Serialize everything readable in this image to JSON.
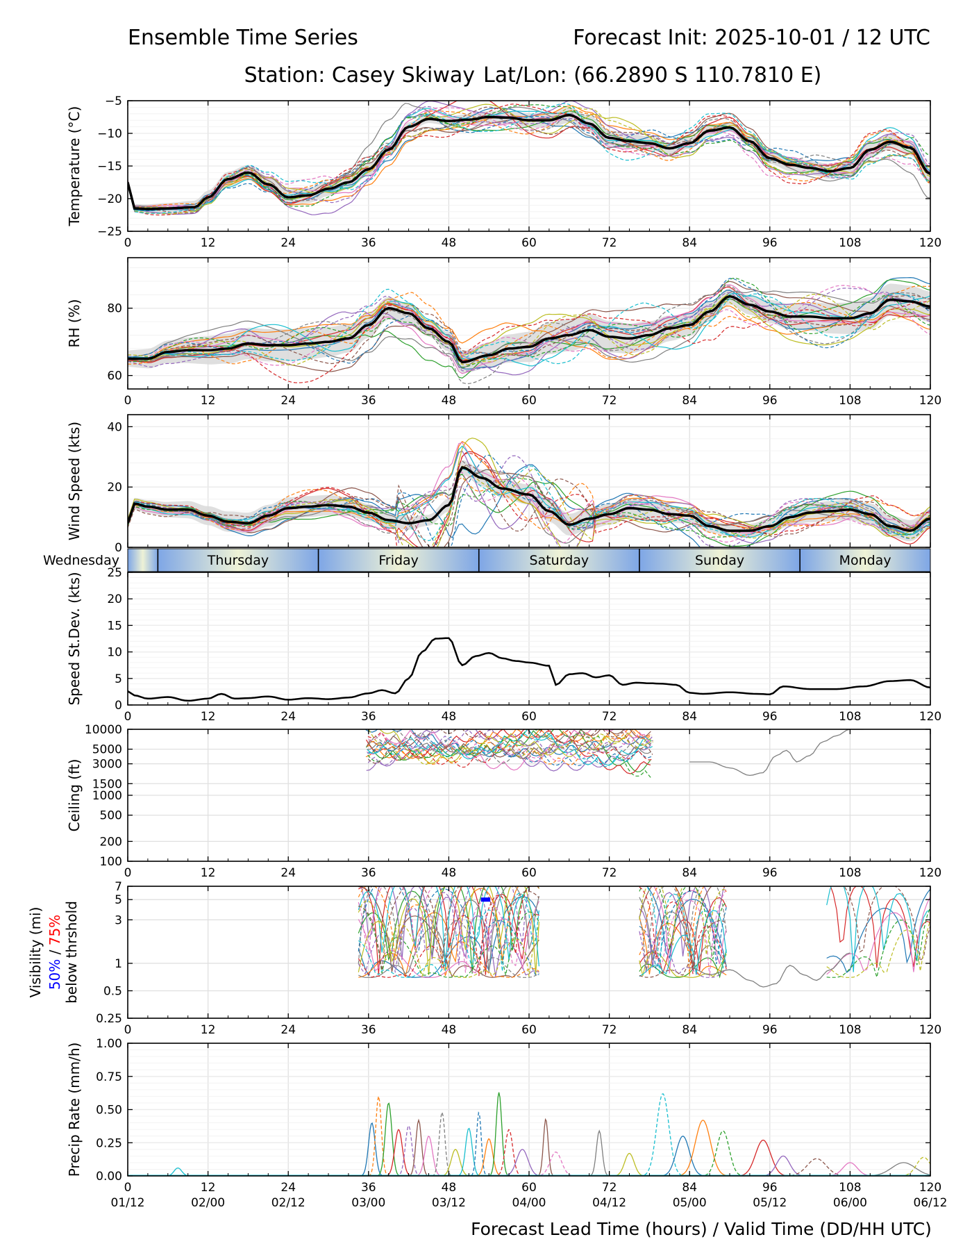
{
  "header": {
    "title_left": "Ensemble Time Series",
    "title_right": "Forecast Init: 2025-10-01 / 12 UTC",
    "station": "Station: Casey Skiway",
    "latlon": "Lat/Lon: (66.2890 S 110.7810 E)"
  },
  "x_axis": {
    "range": [
      0,
      120
    ],
    "ticks": [
      0,
      12,
      24,
      36,
      48,
      60,
      72,
      84,
      96,
      108,
      120
    ],
    "valid_time_labels": [
      "01/12",
      "02/00",
      "02/12",
      "03/00",
      "03/12",
      "04/00",
      "04/12",
      "05/00",
      "05/12",
      "06/00",
      "06/12"
    ],
    "xlabel": "Forecast Lead Time (hours) / Valid Time (DD/HH UTC)"
  },
  "day_strip": {
    "days": [
      {
        "name": "Wednesday",
        "start": 0,
        "end": 4.5
      },
      {
        "name": "Thursday",
        "start": 4.5,
        "end": 28.5
      },
      {
        "name": "Friday",
        "start": 28.5,
        "end": 52.5
      },
      {
        "name": "Saturday",
        "start": 52.5,
        "end": 76.5
      },
      {
        "name": "Sunday",
        "start": 76.5,
        "end": 100.5
      },
      {
        "name": "Monday",
        "start": 100.5,
        "end": 120
      }
    ],
    "colors": {
      "night": "#7ea6e6",
      "day": "#eef2d6"
    }
  },
  "visibility_legend": {
    "line1": "Visibility (mi)",
    "p50": "50%",
    "sep": " / ",
    "p75": "75%",
    "line3": "below thrshold"
  },
  "colors": {
    "members": [
      "#1f77b4",
      "#ff7f0e",
      "#2ca02c",
      "#d62728",
      "#9467bd",
      "#8c564b",
      "#e377c2",
      "#7f7f7f",
      "#bcbd22",
      "#17becf"
    ],
    "mean": "#000000",
    "spread": "#d9d9d9",
    "p50": "#0000ff",
    "p75": "#ff0000"
  },
  "chart_data": [
    {
      "id": "temperature",
      "type": "line",
      "ylabel": "Temperature (°C)",
      "scale": "linear",
      "ylim": [
        -25,
        -5
      ],
      "yticks": [
        -25,
        -20,
        -15,
        -10,
        -5
      ],
      "ytick_labels": [
        "−25",
        "−20",
        "−15",
        "−10",
        "−5"
      ],
      "mean": {
        "x": [
          0,
          1,
          3,
          6,
          10,
          12,
          15,
          18,
          21,
          24,
          27,
          30,
          33,
          36,
          39,
          42,
          45,
          48,
          51,
          54,
          57,
          60,
          63,
          66,
          69,
          72,
          75,
          78,
          81,
          84,
          87,
          90,
          93,
          96,
          99,
          102,
          105,
          108,
          111,
          114,
          117,
          120
        ],
        "y": [
          -17.5,
          -21.5,
          -21.6,
          -21.5,
          -21.3,
          -19.8,
          -17,
          -16,
          -17.8,
          -19.8,
          -19.5,
          -18.5,
          -17.5,
          -15.5,
          -12.5,
          -9,
          -7.8,
          -8.1,
          -7.9,
          -7.5,
          -7.6,
          -8,
          -8,
          -7.2,
          -8.5,
          -10.7,
          -11.2,
          -11.5,
          -12.3,
          -11.5,
          -9.6,
          -9.1,
          -11.2,
          -13.8,
          -14.8,
          -15.3,
          -15.8,
          -15.3,
          -12.5,
          -11.3,
          -12.2,
          -16.2
        ]
      },
      "spread": 1.0,
      "member_amp": 1.6,
      "y_fmt": "0"
    },
    {
      "id": "rh",
      "type": "line",
      "ylabel": "RH (%)",
      "scale": "linear",
      "ylim": [
        56,
        95
      ],
      "yticks": [
        60,
        80
      ],
      "ytick_labels": [
        "60",
        "80"
      ],
      "mean": {
        "x": [
          0,
          3,
          6,
          9,
          12,
          15,
          18,
          21,
          24,
          27,
          30,
          33,
          36,
          39,
          42,
          45,
          48,
          50,
          54,
          57,
          60,
          63,
          66,
          69,
          72,
          75,
          78,
          81,
          84,
          87,
          90,
          93,
          96,
          99,
          102,
          105,
          108,
          111,
          114,
          117,
          120
        ],
        "y": [
          65,
          65,
          67,
          67.5,
          67.5,
          68,
          69.5,
          69,
          69,
          69.5,
          70,
          71,
          75,
          80,
          78.5,
          74,
          70,
          64,
          66,
          68,
          68.5,
          71,
          72,
          73.5,
          71.5,
          71,
          72,
          74,
          75,
          79,
          83.5,
          81,
          79,
          77.5,
          77.5,
          77,
          77,
          78.5,
          82.5,
          82,
          80.5
        ]
      },
      "spread": 4.0,
      "member_amp": 5.0,
      "y_fmt": "0"
    },
    {
      "id": "wind",
      "type": "line",
      "ylabel": "Wind Speed (kts)",
      "scale": "linear",
      "ylim": [
        0,
        44
      ],
      "yticks": [
        0,
        20,
        40
      ],
      "ytick_labels": [
        "0",
        "20",
        "40"
      ],
      "mean": {
        "x": [
          0,
          1,
          3,
          6,
          9,
          12,
          15,
          18,
          21,
          24,
          27,
          30,
          33,
          36,
          39,
          42,
          45,
          48,
          50,
          53,
          56,
          60,
          63,
          66,
          69,
          72,
          75,
          78,
          81,
          84,
          87,
          90,
          93,
          96,
          99,
          102,
          105,
          108,
          111,
          114,
          117,
          120
        ],
        "y": [
          8,
          14.5,
          13.5,
          12.5,
          12.5,
          10.5,
          8.5,
          8,
          10.5,
          13,
          13.5,
          14,
          13.5,
          11.5,
          9,
          8,
          9,
          14,
          26.5,
          23,
          19.5,
          17.5,
          12,
          7.5,
          9.5,
          11,
          13,
          12.5,
          11,
          10.5,
          7,
          5.5,
          5.5,
          7,
          10,
          11.5,
          12,
          12.5,
          11,
          7,
          5.5,
          9.5
        ]
      },
      "spread": 3.0,
      "member_amp": 3.5,
      "y_fmt": "0"
    },
    {
      "id": "stdev",
      "type": "line",
      "ylabel": "Speed St.Dev. (kts)",
      "scale": "linear",
      "ylim": [
        0,
        25
      ],
      "yticks": [
        0,
        5,
        10,
        15,
        20,
        25
      ],
      "ytick_labels": [
        "0",
        "5",
        "10",
        "15",
        "20",
        "25"
      ],
      "mean": {
        "x": [
          0,
          1,
          3,
          6,
          9,
          12,
          14,
          16,
          18,
          21,
          24,
          27,
          30,
          33,
          36,
          38,
          40,
          42,
          44,
          46,
          48,
          50,
          52,
          54,
          56,
          58,
          60,
          63,
          64,
          66,
          68,
          70,
          72,
          74,
          76,
          78,
          80,
          82,
          84,
          86,
          90,
          94,
          96,
          98,
          102,
          106,
          110,
          114,
          117,
          120
        ],
        "y": [
          2.6,
          1.8,
          1.2,
          1.5,
          0.8,
          1.2,
          2.1,
          1.2,
          1.3,
          1.6,
          1,
          1.3,
          1.1,
          1.4,
          2.2,
          2.8,
          2.2,
          5,
          10,
          12.5,
          12.6,
          7.5,
          9.2,
          9.8,
          8.8,
          8.3,
          8,
          7.4,
          3.8,
          5.8,
          6,
          5.2,
          5.6,
          3.8,
          4.2,
          4.1,
          4,
          3.8,
          2.3,
          2.1,
          2.4,
          2.1,
          2,
          3.5,
          3,
          3,
          3.5,
          4.5,
          4.7,
          3.3
        ]
      },
      "y_fmt": "0"
    },
    {
      "id": "ceiling",
      "type": "line",
      "ylabel": "Ceiling (ft)",
      "scale": "log",
      "ylim": [
        100,
        10000
      ],
      "yticks": [
        100,
        200,
        500,
        1000,
        1500,
        3000,
        5000,
        10000
      ],
      "ytick_labels": [
        "100",
        "200",
        "500",
        "1000",
        "1500",
        "3000",
        "5000",
        "10000"
      ],
      "active": [
        33,
        86
      ],
      "base_value": 6500,
      "member_amp": 0.25,
      "extra_trace": {
        "x": [
          84,
          87,
          90,
          93,
          95,
          97,
          98.5,
          100,
          102,
          104,
          106,
          108,
          110
        ],
        "y": [
          3200,
          3200,
          2600,
          2000,
          2200,
          4000,
          4800,
          3200,
          4000,
          6500,
          8000,
          10000,
          10000
        ]
      }
    },
    {
      "id": "visibility",
      "type": "line",
      "ylabel": "Visibility (mi)",
      "scale": "log",
      "ylim": [
        0.25,
        7
      ],
      "yticks": [
        0.25,
        0.5,
        1,
        3,
        5,
        7
      ],
      "ytick_labels": [
        "0.25",
        "0.5",
        "1",
        "3",
        "5",
        "7"
      ],
      "p50_segment": {
        "x": [
          52.8,
          54.2
        ],
        "y": 5
      },
      "extra_trace": {
        "x": [
          84,
          87,
          90,
          93,
          95,
          97,
          99,
          101,
          103,
          105,
          108
        ],
        "y": [
          0.9,
          0.75,
          0.85,
          0.65,
          0.55,
          0.6,
          0.95,
          0.75,
          0.65,
          0.85,
          1.3
        ]
      }
    },
    {
      "id": "precip",
      "type": "line",
      "ylabel": "Precip Rate (mm/h)",
      "scale": "linear",
      "ylim": [
        0,
        1
      ],
      "yticks": [
        0,
        0.25,
        0.5,
        0.75,
        1
      ],
      "ytick_labels": [
        "0.00",
        "0.25",
        "0.50",
        "0.75",
        "1.00"
      ],
      "peaks": [
        {
          "x": 36.5,
          "y": 0.4,
          "w": 0.7
        },
        {
          "x": 37.5,
          "y": 0.6,
          "w": 0.6
        },
        {
          "x": 39,
          "y": 0.55,
          "w": 0.7
        },
        {
          "x": 40.5,
          "y": 0.35,
          "w": 0.8
        },
        {
          "x": 42,
          "y": 0.38,
          "w": 0.7
        },
        {
          "x": 43.5,
          "y": 0.42,
          "w": 0.6
        },
        {
          "x": 45,
          "y": 0.3,
          "w": 0.8
        },
        {
          "x": 47,
          "y": 0.48,
          "w": 0.6
        },
        {
          "x": 49,
          "y": 0.2,
          "w": 0.9
        },
        {
          "x": 51,
          "y": 0.36,
          "w": 0.7
        },
        {
          "x": 52.5,
          "y": 0.48,
          "w": 0.5
        },
        {
          "x": 54,
          "y": 0.28,
          "w": 0.8
        },
        {
          "x": 55.5,
          "y": 0.63,
          "w": 0.6
        },
        {
          "x": 57,
          "y": 0.35,
          "w": 0.8
        },
        {
          "x": 59,
          "y": 0.2,
          "w": 1.2
        },
        {
          "x": 62.5,
          "y": 0.43,
          "w": 0.5
        },
        {
          "x": 64,
          "y": 0.18,
          "w": 1.2
        },
        {
          "x": 70.5,
          "y": 0.34,
          "w": 0.6
        },
        {
          "x": 75,
          "y": 0.17,
          "w": 1.0
        },
        {
          "x": 80,
          "y": 0.62,
          "w": 1.3
        },
        {
          "x": 83,
          "y": 0.3,
          "w": 1.4
        },
        {
          "x": 86,
          "y": 0.42,
          "w": 1.6
        },
        {
          "x": 89,
          "y": 0.34,
          "w": 1.3
        },
        {
          "x": 95,
          "y": 0.27,
          "w": 1.6
        },
        {
          "x": 98,
          "y": 0.15,
          "w": 1.4
        },
        {
          "x": 103,
          "y": 0.13,
          "w": 2.0
        },
        {
          "x": 108,
          "y": 0.1,
          "w": 1.5
        },
        {
          "x": 116,
          "y": 0.1,
          "w": 2.5
        },
        {
          "x": 119,
          "y": 0.14,
          "w": 1.5
        },
        {
          "x": 7.5,
          "y": 0.06,
          "w": 0.8
        }
      ]
    }
  ]
}
